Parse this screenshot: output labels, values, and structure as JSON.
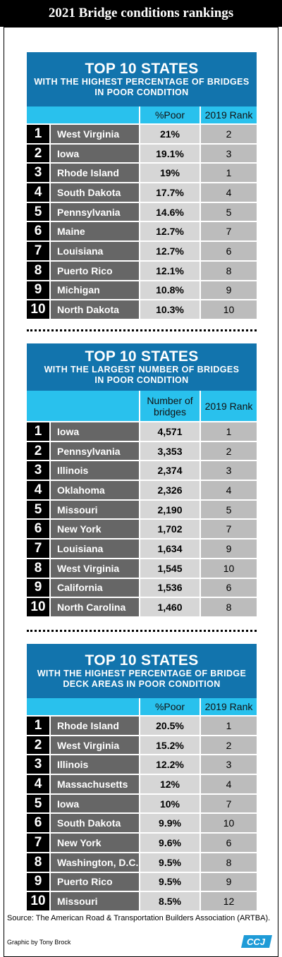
{
  "header": {
    "title": "2021 Bridge conditions rankings"
  },
  "panels": [
    {
      "title": "TOP 10 STATES",
      "subtitle_line1": "WITH THE HIGHEST PERCENTAGE OF BRIDGES",
      "subtitle_line2": "IN POOR CONDITION",
      "col_value": "%Poor",
      "col_value_line2": "",
      "col_rank": "2019 Rank"
    },
    {
      "title": "TOP 10 STATES",
      "subtitle_line1": "WITH THE LARGEST NUMBER OF BRIDGES",
      "subtitle_line2": "IN POOR CONDITION",
      "col_value": "Number of",
      "col_value_line2": "bridges",
      "col_rank": "2019 Rank"
    },
    {
      "title": "TOP 10 STATES",
      "subtitle_line1": "WITH THE HIGHEST PERCENTAGE OF BRIDGE",
      "subtitle_line2": "DECK AREAS IN POOR CONDITION",
      "col_value": "%Poor",
      "col_value_line2": "",
      "col_rank": "2019 Rank"
    }
  ],
  "chart_data": [
    {
      "type": "table",
      "columns": [
        "",
        "",
        "%Poor",
        "2019 Rank"
      ],
      "rows": [
        [
          "1",
          "West Virginia",
          "21%",
          "2"
        ],
        [
          "2",
          "Iowa",
          "19.1%",
          "3"
        ],
        [
          "3",
          "Rhode Island",
          "19%",
          "1"
        ],
        [
          "4",
          "South Dakota",
          "17.7%",
          "4"
        ],
        [
          "5",
          "Pennsylvania",
          "14.6%",
          "5"
        ],
        [
          "6",
          "Maine",
          "12.7%",
          "7"
        ],
        [
          "7",
          "Louisiana",
          "12.7%",
          "6"
        ],
        [
          "8",
          "Puerto Rico",
          "12.1%",
          "8"
        ],
        [
          "9",
          "Michigan",
          "10.8%",
          "9"
        ],
        [
          "10",
          "North Dakota",
          "10.3%",
          "10"
        ]
      ]
    },
    {
      "type": "table",
      "columns": [
        "",
        "",
        "Number of bridges",
        "2019 Rank"
      ],
      "rows": [
        [
          "1",
          "Iowa",
          "4,571",
          "1"
        ],
        [
          "2",
          "Pennsylvania",
          "3,353",
          "2"
        ],
        [
          "3",
          "Illinois",
          "2,374",
          "3"
        ],
        [
          "4",
          "Oklahoma",
          "2,326",
          "4"
        ],
        [
          "5",
          "Missouri",
          "2,190",
          "5"
        ],
        [
          "6",
          "New York",
          "1,702",
          "7"
        ],
        [
          "7",
          "Louisiana",
          "1,634",
          "9"
        ],
        [
          "8",
          "West Virginia",
          "1,545",
          "10"
        ],
        [
          "9",
          "California",
          "1,536",
          "6"
        ],
        [
          "10",
          "North Carolina",
          "1,460",
          "8"
        ]
      ]
    },
    {
      "type": "table",
      "columns": [
        "",
        "",
        "%Poor",
        "2019 Rank"
      ],
      "rows": [
        [
          "1",
          "Rhode Island",
          "20.5%",
          "1"
        ],
        [
          "2",
          "West Virginia",
          "15.2%",
          "2"
        ],
        [
          "3",
          "Illinois",
          "12.2%",
          "3"
        ],
        [
          "4",
          "Massachusetts",
          "12%",
          "4"
        ],
        [
          "5",
          "Iowa",
          "10%",
          "7"
        ],
        [
          "6",
          "South Dakota",
          "9.9%",
          "10"
        ],
        [
          "7",
          "New York",
          "9.6%",
          "6"
        ],
        [
          "8",
          "Washington, D.C.",
          "9.5%",
          "8"
        ],
        [
          "9",
          "Puerto Rico",
          "9.5%",
          "9"
        ],
        [
          "10",
          "Missouri",
          "8.5%",
          "12"
        ]
      ]
    }
  ],
  "footer": {
    "source": "Source:  The American Road & Transportation Builders Association (ARTBA).",
    "credit": "Graphic by Tony Brock",
    "logo_text": "CCJ"
  },
  "colors": {
    "header_blue": "#1274ad",
    "column_cyan": "#29c1ed",
    "state_gray": "#666666",
    "value_gray": "#d6d6d6",
    "rank_gray": "#bcbcbc"
  }
}
